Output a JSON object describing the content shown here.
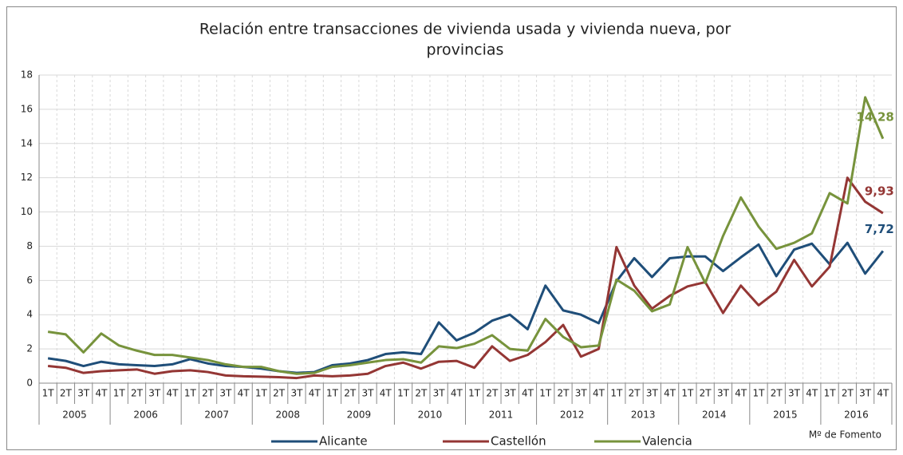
{
  "chart_data": {
    "type": "line",
    "title": [
      "Relación entre transacciones de vivienda usada y vivienda nueva, por",
      "provincias"
    ],
    "source": "Mº de Fomento",
    "categories": [
      "1T",
      "2T",
      "3T",
      "4T",
      "1T",
      "2T",
      "3T",
      "4T",
      "1T",
      "2T",
      "3T",
      "4T",
      "1T",
      "2T",
      "3T",
      "4T",
      "1T",
      "2T",
      "3T",
      "4T",
      "1T",
      "2T",
      "3T",
      "4T",
      "1T",
      "2T",
      "3T",
      "4T",
      "1T",
      "2T",
      "3T",
      "4T",
      "1T",
      "2T",
      "3T",
      "4T",
      "1T",
      "2T",
      "3T",
      "4T",
      "1T",
      "2T",
      "3T",
      "4T",
      "1T",
      "2T",
      "3T",
      "4T"
    ],
    "category_groups": [
      "2005",
      "2006",
      "2007",
      "2008",
      "2009",
      "2010",
      "2011",
      "2012",
      "2013",
      "2014",
      "2015",
      "2016"
    ],
    "ylim": [
      0,
      18
    ],
    "yticks": [
      0,
      2,
      4,
      6,
      8,
      10,
      12,
      14,
      16,
      18
    ],
    "grid": true,
    "legend": "bottom",
    "series": [
      {
        "name": "Alicante",
        "color": "#1f4e79",
        "values": [
          1.45,
          1.3,
          1.0,
          1.25,
          1.1,
          1.05,
          1.0,
          1.1,
          1.4,
          1.15,
          1.0,
          0.95,
          0.85,
          0.7,
          0.6,
          0.65,
          1.05,
          1.15,
          1.35,
          1.7,
          1.8,
          1.7,
          3.55,
          2.5,
          2.95,
          3.65,
          4.0,
          3.15,
          5.7,
          4.25,
          4.0,
          3.5,
          5.95,
          7.3,
          6.2,
          7.3,
          7.4,
          7.4,
          6.55,
          7.35,
          8.1,
          6.25,
          7.8,
          8.15,
          6.95,
          8.2,
          6.4,
          7.72
        ],
        "value_labels": [
          null,
          null,
          null,
          null,
          null,
          null,
          null,
          null,
          null,
          null,
          null,
          null,
          null,
          null,
          null,
          null,
          null,
          null,
          null,
          null,
          null,
          null,
          null,
          null,
          null,
          null,
          null,
          null,
          null,
          null,
          null,
          null,
          null,
          null,
          null,
          null,
          null,
          null,
          null,
          null,
          null,
          null,
          null,
          null,
          null,
          null,
          null,
          "7,72"
        ]
      },
      {
        "name": "Castellón",
        "color": "#943634",
        "values": [
          1.0,
          0.9,
          0.6,
          0.7,
          0.75,
          0.8,
          0.55,
          0.7,
          0.75,
          0.65,
          0.45,
          0.4,
          0.38,
          0.35,
          0.3,
          0.45,
          0.4,
          0.45,
          0.55,
          1.0,
          1.2,
          0.85,
          1.25,
          1.3,
          0.9,
          2.15,
          1.3,
          1.65,
          2.4,
          3.4,
          1.55,
          2.0,
          7.95,
          5.7,
          4.35,
          5.1,
          5.65,
          5.9,
          4.1,
          5.7,
          4.55,
          5.35,
          7.2,
          5.65,
          6.8,
          12.0,
          10.6,
          9.93
        ],
        "value_labels": [
          null,
          null,
          null,
          null,
          null,
          null,
          null,
          null,
          null,
          null,
          null,
          null,
          null,
          null,
          null,
          null,
          null,
          null,
          null,
          null,
          null,
          null,
          null,
          null,
          null,
          null,
          null,
          null,
          null,
          null,
          null,
          null,
          null,
          null,
          null,
          null,
          null,
          null,
          null,
          null,
          null,
          null,
          null,
          null,
          null,
          null,
          null,
          "9,93"
        ]
      },
      {
        "name": "Valencia",
        "color": "#77933c",
        "values": [
          3.0,
          2.85,
          1.8,
          2.9,
          2.2,
          1.9,
          1.65,
          1.65,
          1.5,
          1.35,
          1.1,
          0.95,
          0.95,
          0.7,
          0.55,
          0.6,
          0.95,
          1.05,
          1.2,
          1.35,
          1.4,
          1.2,
          2.15,
          2.05,
          2.3,
          2.8,
          2.0,
          1.9,
          3.75,
          2.7,
          2.1,
          2.2,
          6.05,
          5.4,
          4.2,
          4.6,
          7.95,
          5.85,
          8.6,
          10.85,
          9.15,
          7.85,
          8.2,
          8.75,
          11.1,
          10.5,
          16.7,
          14.28
        ],
        "value_labels": [
          null,
          null,
          null,
          null,
          null,
          null,
          null,
          null,
          null,
          null,
          null,
          null,
          null,
          null,
          null,
          null,
          null,
          null,
          null,
          null,
          null,
          null,
          null,
          null,
          null,
          null,
          null,
          null,
          null,
          null,
          null,
          null,
          null,
          null,
          null,
          null,
          null,
          null,
          null,
          null,
          null,
          null,
          null,
          null,
          null,
          null,
          null,
          "14,28"
        ]
      }
    ]
  }
}
